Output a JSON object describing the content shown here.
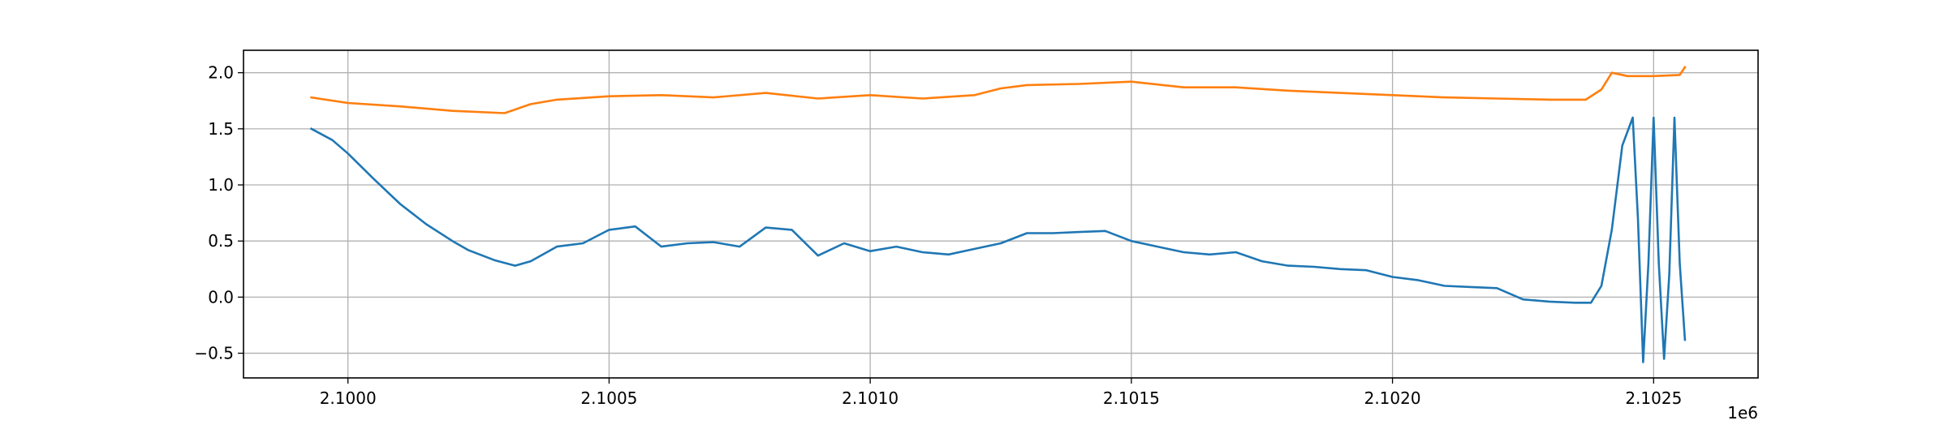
{
  "chart_data": {
    "type": "line",
    "title": "",
    "xlabel": "",
    "ylabel": "",
    "x_offset_text": "1e6",
    "xlim": [
      2099800,
      2102700
    ],
    "ylim": [
      -0.72,
      2.2
    ],
    "grid": true,
    "x_ticks": [
      {
        "value": 2100000,
        "label": "2.1000"
      },
      {
        "value": 2100500,
        "label": "2.1005"
      },
      {
        "value": 2101000,
        "label": "2.1010"
      },
      {
        "value": 2101500,
        "label": "2.1015"
      },
      {
        "value": 2102000,
        "label": "2.1020"
      },
      {
        "value": 2102500,
        "label": "2.1025"
      }
    ],
    "y_ticks": [
      {
        "value": -0.5,
        "label": "−0.5"
      },
      {
        "value": 0.0,
        "label": "0.0"
      },
      {
        "value": 0.5,
        "label": "0.5"
      },
      {
        "value": 1.0,
        "label": "1.0"
      },
      {
        "value": 1.5,
        "label": "1.5"
      },
      {
        "value": 2.0,
        "label": "2.0"
      }
    ],
    "series": [
      {
        "color": "#1f77b4",
        "x": [
          2099930,
          2099970,
          2100000,
          2100050,
          2100100,
          2100150,
          2100200,
          2100230,
          2100280,
          2100320,
          2100350,
          2100400,
          2100450,
          2100500,
          2100550,
          2100600,
          2100650,
          2100700,
          2100750,
          2100800,
          2100850,
          2100900,
          2100950,
          2101000,
          2101050,
          2101100,
          2101150,
          2101200,
          2101250,
          2101300,
          2101350,
          2101400,
          2101450,
          2101500,
          2101550,
          2101600,
          2101650,
          2101700,
          2101750,
          2101800,
          2101850,
          2101900,
          2101950,
          2102000,
          2102050,
          2102100,
          2102150,
          2102200,
          2102250,
          2102300,
          2102350,
          2102380,
          2102400,
          2102420,
          2102440,
          2102460,
          2102470,
          2102480,
          2102490,
          2102500,
          2102510,
          2102520,
          2102530,
          2102540,
          2102550,
          2102560
        ],
        "y": [
          1.5,
          1.4,
          1.28,
          1.05,
          0.83,
          0.65,
          0.5,
          0.42,
          0.33,
          0.28,
          0.32,
          0.45,
          0.48,
          0.6,
          0.63,
          0.45,
          0.48,
          0.49,
          0.45,
          0.62,
          0.6,
          0.37,
          0.48,
          0.41,
          0.45,
          0.4,
          0.38,
          0.43,
          0.48,
          0.57,
          0.57,
          0.58,
          0.59,
          0.5,
          0.45,
          0.4,
          0.38,
          0.4,
          0.32,
          0.28,
          0.27,
          0.25,
          0.24,
          0.18,
          0.15,
          0.1,
          0.09,
          0.08,
          -0.02,
          -0.04,
          -0.05,
          -0.05,
          0.1,
          0.6,
          1.35,
          1.6,
          0.7,
          -0.58,
          0.3,
          1.6,
          0.3,
          -0.55,
          0.2,
          1.6,
          0.3,
          -0.38
        ]
      },
      {
        "color": "#ff7f0e",
        "x": [
          2099930,
          2100000,
          2100100,
          2100200,
          2100300,
          2100350,
          2100400,
          2100500,
          2100600,
          2100700,
          2100800,
          2100900,
          2101000,
          2101100,
          2101200,
          2101250,
          2101300,
          2101400,
          2101500,
          2101600,
          2101700,
          2101800,
          2101900,
          2102000,
          2102100,
          2102200,
          2102300,
          2102370,
          2102400,
          2102420,
          2102450,
          2102500,
          2102550,
          2102560
        ],
        "y": [
          1.78,
          1.73,
          1.7,
          1.66,
          1.64,
          1.72,
          1.76,
          1.79,
          1.8,
          1.78,
          1.82,
          1.77,
          1.8,
          1.77,
          1.8,
          1.86,
          1.89,
          1.9,
          1.92,
          1.87,
          1.87,
          1.84,
          1.82,
          1.8,
          1.78,
          1.77,
          1.76,
          1.76,
          1.85,
          2.0,
          1.97,
          1.97,
          1.98,
          2.05
        ]
      }
    ]
  }
}
